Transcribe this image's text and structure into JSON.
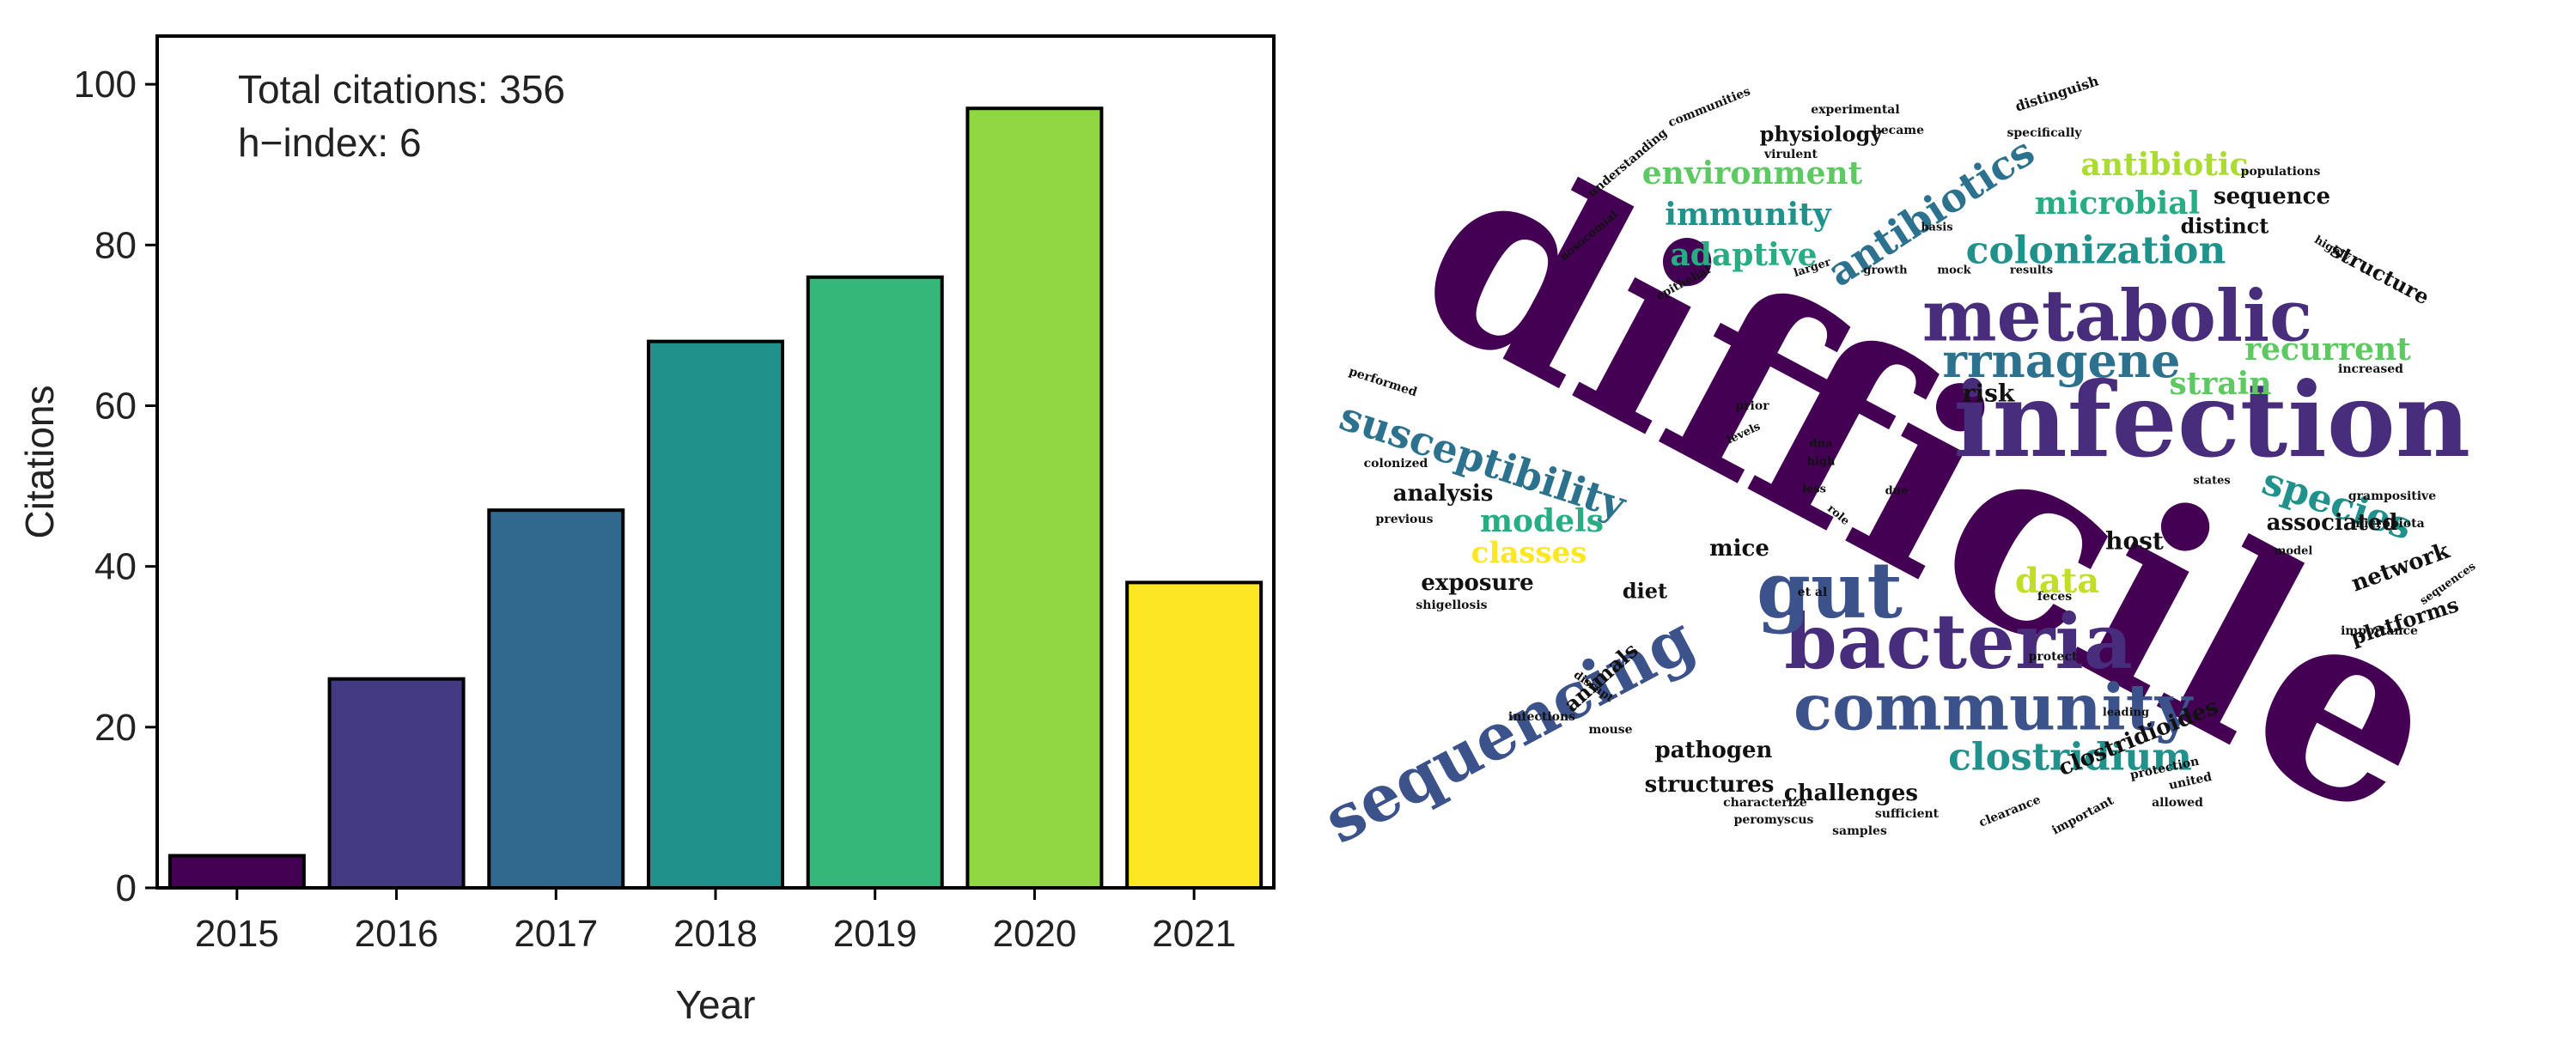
{
  "chart_data": [
    {
      "type": "bar",
      "categories": [
        "2015",
        "2016",
        "2017",
        "2018",
        "2019",
        "2020",
        "2021"
      ],
      "values": [
        4,
        26,
        47,
        68,
        76,
        97,
        38
      ],
      "colors": [
        "#440154",
        "#443983",
        "#31688e",
        "#21918c",
        "#35b779",
        "#90d743",
        "#fde725"
      ],
      "xlabel": "Year",
      "ylabel": "Citations",
      "ylim": [
        0,
        106
      ],
      "yticks": [
        0,
        20,
        40,
        60,
        80,
        100
      ],
      "grid": false,
      "annotations": [
        "Total citations: 356",
        "h−index: 6"
      ]
    },
    {
      "type": "wordcloud",
      "words": [
        {
          "text": "difficile",
          "weight": 100,
          "color": "#440154"
        },
        {
          "text": "infection",
          "weight": 44,
          "color": "#472d7b"
        },
        {
          "text": "metabolic",
          "weight": 36,
          "color": "#472d7b"
        },
        {
          "text": "bacteria",
          "weight": 36,
          "color": "#472d7b"
        },
        {
          "text": "community",
          "weight": 34,
          "color": "#3b528b"
        },
        {
          "text": "gut",
          "weight": 38,
          "color": "#3b528b"
        },
        {
          "text": "sequencing",
          "weight": 32,
          "color": "#3b528b"
        },
        {
          "text": "susceptibility",
          "weight": 22,
          "color": "#2c728e"
        },
        {
          "text": "rrnagene",
          "weight": 22,
          "color": "#2c728e"
        },
        {
          "text": "antibiotics",
          "weight": 22,
          "color": "#2c728e"
        },
        {
          "text": "colonization",
          "weight": 20,
          "color": "#21918c"
        },
        {
          "text": "species",
          "weight": 20,
          "color": "#21918c"
        },
        {
          "text": "clostridium",
          "weight": 20,
          "color": "#21918c"
        },
        {
          "text": "immunity",
          "weight": 17,
          "color": "#21918c"
        },
        {
          "text": "adaptive",
          "weight": 16,
          "color": "#27ad81"
        },
        {
          "text": "environment",
          "weight": 17,
          "color": "#5ec962"
        },
        {
          "text": "microbial",
          "weight": 16,
          "color": "#27ad81"
        },
        {
          "text": "antibiotic",
          "weight": 16,
          "color": "#aadc32"
        },
        {
          "text": "recurrent",
          "weight": 15,
          "color": "#5ec962"
        },
        {
          "text": "strain",
          "weight": 15,
          "color": "#5ec962"
        },
        {
          "text": "models",
          "weight": 16,
          "color": "#27ad81"
        },
        {
          "text": "classes",
          "weight": 15,
          "color": "#fde725"
        },
        {
          "text": "data",
          "weight": 16,
          "color": "#c2df23"
        },
        {
          "text": "associated",
          "weight": 12,
          "color": "#111111"
        },
        {
          "text": "sequence",
          "weight": 12,
          "color": "#111111"
        },
        {
          "text": "distinct",
          "weight": 11,
          "color": "#111111"
        },
        {
          "text": "physiology",
          "weight": 11,
          "color": "#111111"
        },
        {
          "text": "structure",
          "weight": 11,
          "color": "#111111"
        },
        {
          "text": "risk",
          "weight": 12,
          "color": "#111111"
        },
        {
          "text": "host",
          "weight": 12,
          "color": "#111111"
        },
        {
          "text": "network",
          "weight": 12,
          "color": "#111111"
        },
        {
          "text": "platforms",
          "weight": 12,
          "color": "#111111"
        },
        {
          "text": "analysis",
          "weight": 11,
          "color": "#111111"
        },
        {
          "text": "mice",
          "weight": 12,
          "color": "#111111"
        },
        {
          "text": "exposure",
          "weight": 12,
          "color": "#111111"
        },
        {
          "text": "diet",
          "weight": 11,
          "color": "#111111"
        },
        {
          "text": "animals",
          "weight": 11,
          "color": "#111111"
        },
        {
          "text": "pathogen",
          "weight": 12,
          "color": "#111111"
        },
        {
          "text": "structures",
          "weight": 12,
          "color": "#111111"
        },
        {
          "text": "challenges",
          "weight": 12,
          "color": "#111111"
        },
        {
          "text": "clostridioides",
          "weight": 12,
          "color": "#111111"
        },
        {
          "text": "experimental",
          "weight": 6,
          "color": "#111111"
        },
        {
          "text": "distinguish",
          "weight": 6,
          "color": "#111111"
        },
        {
          "text": "became",
          "weight": 6,
          "color": "#111111"
        },
        {
          "text": "communities",
          "weight": 6,
          "color": "#111111"
        },
        {
          "text": "virulent",
          "weight": 6,
          "color": "#111111"
        },
        {
          "text": "understanding",
          "weight": 6,
          "color": "#111111"
        },
        {
          "text": "specifically",
          "weight": 6,
          "color": "#111111"
        },
        {
          "text": "populations",
          "weight": 6,
          "color": "#111111"
        },
        {
          "text": "basis",
          "weight": 6,
          "color": "#111111"
        },
        {
          "text": "nosocomial",
          "weight": 6,
          "color": "#111111"
        },
        {
          "text": "larger",
          "weight": 6,
          "color": "#111111"
        },
        {
          "text": "epithelial",
          "weight": 6,
          "color": "#111111"
        },
        {
          "text": "growth",
          "weight": 6,
          "color": "#111111"
        },
        {
          "text": "mock",
          "weight": 6,
          "color": "#111111"
        },
        {
          "text": "results",
          "weight": 6,
          "color": "#111111"
        },
        {
          "text": "highly",
          "weight": 6,
          "color": "#111111"
        },
        {
          "text": "increased",
          "weight": 6,
          "color": "#111111"
        },
        {
          "text": "performed",
          "weight": 6,
          "color": "#111111"
        },
        {
          "text": "prior",
          "weight": 6,
          "color": "#111111"
        },
        {
          "text": "levels",
          "weight": 6,
          "color": "#111111"
        },
        {
          "text": "dna",
          "weight": 6,
          "color": "#111111"
        },
        {
          "text": "high",
          "weight": 6,
          "color": "#111111"
        },
        {
          "text": "less",
          "weight": 6,
          "color": "#111111"
        },
        {
          "text": "due",
          "weight": 6,
          "color": "#111111"
        },
        {
          "text": "states",
          "weight": 6,
          "color": "#111111"
        },
        {
          "text": "grampositive",
          "weight": 6,
          "color": "#111111"
        },
        {
          "text": "colonized",
          "weight": 6,
          "color": "#111111"
        },
        {
          "text": "previous",
          "weight": 6,
          "color": "#111111"
        },
        {
          "text": "role",
          "weight": 6,
          "color": "#111111"
        },
        {
          "text": "microbiota",
          "weight": 6,
          "color": "#111111"
        },
        {
          "text": "model",
          "weight": 6,
          "color": "#111111"
        },
        {
          "text": "shigellosis",
          "weight": 6,
          "color": "#111111"
        },
        {
          "text": "et al",
          "weight": 6,
          "color": "#111111"
        },
        {
          "text": "feces",
          "weight": 6,
          "color": "#111111"
        },
        {
          "text": "sequences",
          "weight": 6,
          "color": "#111111"
        },
        {
          "text": "importance",
          "weight": 6,
          "color": "#111111"
        },
        {
          "text": "disrupt",
          "weight": 6,
          "color": "#111111"
        },
        {
          "text": "protect",
          "weight": 6,
          "color": "#111111"
        },
        {
          "text": "infections",
          "weight": 6,
          "color": "#111111"
        },
        {
          "text": "mouse",
          "weight": 6,
          "color": "#111111"
        },
        {
          "text": "leading",
          "weight": 6,
          "color": "#111111"
        },
        {
          "text": "characterize",
          "weight": 6,
          "color": "#111111"
        },
        {
          "text": "peromyscus",
          "weight": 6,
          "color": "#111111"
        },
        {
          "text": "sufficient",
          "weight": 6,
          "color": "#111111"
        },
        {
          "text": "samples",
          "weight": 6,
          "color": "#111111"
        },
        {
          "text": "clearance",
          "weight": 6,
          "color": "#111111"
        },
        {
          "text": "important",
          "weight": 6,
          "color": "#111111"
        },
        {
          "text": "protection",
          "weight": 6,
          "color": "#111111"
        },
        {
          "text": "united",
          "weight": 6,
          "color": "#111111"
        },
        {
          "text": "allowed",
          "weight": 6,
          "color": "#111111"
        }
      ]
    }
  ]
}
